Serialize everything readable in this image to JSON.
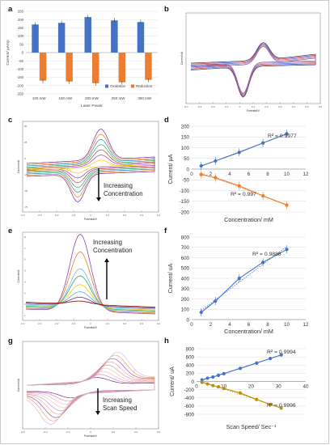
{
  "panel_labels": [
    "a",
    "b",
    "c",
    "d",
    "e",
    "f",
    "g",
    "h"
  ],
  "chart_data": [
    {
      "panel": "a",
      "type": "bar",
      "xlabel": "Laser Power",
      "ylabel": "Current/ µAmp",
      "categories": [
        "100 mW",
        "150 mW",
        "200 mW",
        "250 mW",
        "300 mW"
      ],
      "series": [
        {
          "name": "Oxidation",
          "color": "#4472c4",
          "values": [
            170,
            180,
            215,
            195,
            185
          ]
        },
        {
          "name": "Reduction",
          "color": "#ed7d31",
          "values": [
            -170,
            -175,
            -185,
            -180,
            -165
          ]
        }
      ],
      "ylim": [
        -250,
        250
      ],
      "yticks": [
        "250",
        "200",
        "150",
        "100",
        "50",
        "0",
        "-50",
        "-100",
        "-150",
        "-200",
        "-250"
      ],
      "legend_position": "bottom-right"
    },
    {
      "panel": "b",
      "type": "line",
      "xlabel": "Potential/V",
      "ylabel": "Current/nA",
      "xticks": [
        "-0.4",
        "-0.3",
        "-0.2",
        "-0.1",
        "0",
        "0.1",
        "0.2",
        "0.3",
        "0.4",
        "0.5",
        "0.6"
      ]
    },
    {
      "panel": "c",
      "type": "line",
      "xlabel": "Potential/V",
      "ylabel": "Current/nA",
      "annotation": "Increasing Concentration",
      "xticks": [
        "-0.4",
        "-0.3",
        "-0.2",
        "-0.1",
        "0",
        "0.1",
        "0.2",
        "0.3",
        "0.4"
      ],
      "yticks": [
        "50",
        "25",
        "0",
        "-25",
        "-50",
        "-75"
      ]
    },
    {
      "panel": "d",
      "type": "scatter",
      "xlabel": "Concentration/ mM",
      "ylabel": "Current/ µA",
      "xlim": [
        0,
        12
      ],
      "ylim": [
        -200,
        200
      ],
      "xticks": [
        "0",
        "2",
        "4",
        "6",
        "8",
        "10",
        "12"
      ],
      "yticks": [
        "200",
        "150",
        "100",
        "50",
        "0",
        "-50",
        "-100",
        "-150",
        "-200"
      ],
      "series": [
        {
          "color": "#4472c4",
          "x": [
            1,
            2.5,
            5,
            7.5,
            10
          ],
          "y": [
            15,
            38,
            78,
            122,
            165
          ],
          "r2": "R² = 0.9977"
        },
        {
          "color": "#ed7d31",
          "x": [
            1,
            2.5,
            5,
            7.5,
            10
          ],
          "y": [
            -25,
            -40,
            -78,
            -125,
            -168
          ],
          "r2": "R² = 0.997"
        }
      ]
    },
    {
      "panel": "e",
      "type": "line",
      "xlabel": "Potential/V",
      "ylabel": "Current/nA",
      "annotation": "Increasing Concentration",
      "xticks": [
        "-0.4",
        "-0.3",
        "-0.2",
        "-0.1",
        "0",
        "0.1",
        "0.2",
        "0.3",
        "0.4"
      ],
      "yticks": [
        "8",
        "7",
        "6",
        "5",
        "4",
        "3",
        "2",
        "1"
      ]
    },
    {
      "panel": "f",
      "type": "scatter",
      "xlabel": "Concentration/ mM",
      "ylabel": "Current/ uA",
      "xlim": [
        0,
        12
      ],
      "ylim": [
        0,
        800
      ],
      "xticks": [
        "0",
        "2",
        "4",
        "6",
        "8",
        "10",
        "12"
      ],
      "yticks": [
        "800",
        "700",
        "600",
        "500",
        "400",
        "300",
        "200",
        "100",
        "0"
      ],
      "series": [
        {
          "color": "#4472c4",
          "x": [
            1,
            2.5,
            5,
            7.5,
            10
          ],
          "y": [
            70,
            180,
            400,
            555,
            680
          ],
          "r2": "R² = 0.9888"
        }
      ]
    },
    {
      "panel": "g",
      "type": "line",
      "xlabel": "Potential/V",
      "ylabel": "Current/nA",
      "annotation": "Increasing Scan Speed",
      "xticks": [
        "-0.6",
        "-0.4",
        "-0.2",
        "0",
        "0.2",
        "0.4",
        "0.6"
      ]
    },
    {
      "panel": "h",
      "type": "scatter",
      "xlabel": "Scan Speed/ Sec⁻¹",
      "ylabel": "Current/ uA",
      "xlim": [
        0,
        40
      ],
      "ylim": [
        -800,
        800
      ],
      "xticks": [
        "0",
        "10",
        "20",
        "30",
        "40"
      ],
      "yticks": [
        "800",
        "600",
        "400",
        "200",
        "0",
        "-200",
        "-400",
        "-600",
        "-800"
      ],
      "series": [
        {
          "color": "#4472c4",
          "x": [
            2,
            4,
            6,
            8,
            10,
            16,
            22,
            27,
            31
          ],
          "y": [
            40,
            80,
            110,
            150,
            190,
            320,
            450,
            560,
            650
          ],
          "r2": "R² = 0.9994"
        },
        {
          "color": "#bf9000",
          "x": [
            2,
            4,
            6,
            8,
            10,
            16,
            22,
            27,
            31
          ],
          "y": [
            -20,
            -60,
            -100,
            -130,
            -170,
            -280,
            -440,
            -560,
            -650
          ],
          "r2": "R² = 0.9996"
        }
      ]
    }
  ]
}
